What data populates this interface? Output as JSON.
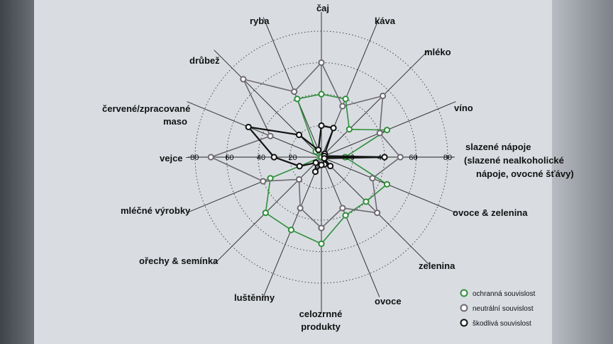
{
  "chart_data": {
    "type": "radar",
    "categories": [
      [
        "čaj"
      ],
      [
        "káva"
      ],
      [
        "mléko"
      ],
      [
        "víno"
      ],
      [
        "slazené nápoje",
        "(slazené nealkoholické",
        "nápoje, ovocné šťávy)"
      ],
      [
        "ovoce & zelenina"
      ],
      [
        "zelenina"
      ],
      [
        "ovoce"
      ],
      [
        "celozrnné",
        "produkty"
      ],
      [
        "luštěniny"
      ],
      [
        "ořechy & semínka"
      ],
      [
        "mléčné výrobky"
      ],
      [
        "vejce"
      ],
      [
        "červené/zpracované",
        "maso"
      ],
      [
        "drůbež"
      ],
      [
        "ryba"
      ]
    ],
    "axis_ticks": [
      "20",
      "40",
      "60",
      "80"
    ],
    "axis_ticks_left": [
      "−80",
      "60",
      "40",
      "20"
    ],
    "rmax": 80,
    "series": [
      {
        "name": "ochranná souvislost",
        "color": "#2f8f3a",
        "values": [
          40,
          40,
          25,
          45,
          15,
          45,
          40,
          40,
          55,
          50,
          50,
          35,
          0,
          0,
          5,
          40
        ]
      },
      {
        "name": "neutrální souvislost",
        "color": "#6e6a70",
        "values": [
          60,
          35,
          55,
          40,
          50,
          35,
          50,
          35,
          45,
          35,
          20,
          40,
          70,
          35,
          70,
          45
        ]
      },
      {
        "name": "škodlivá souvislost",
        "color": "#111111",
        "values": [
          20,
          20,
          3,
          2,
          40,
          2,
          8,
          5,
          5,
          10,
          5,
          15,
          30,
          50,
          20,
          5
        ]
      }
    ],
    "legend_position": "bottom-right"
  }
}
